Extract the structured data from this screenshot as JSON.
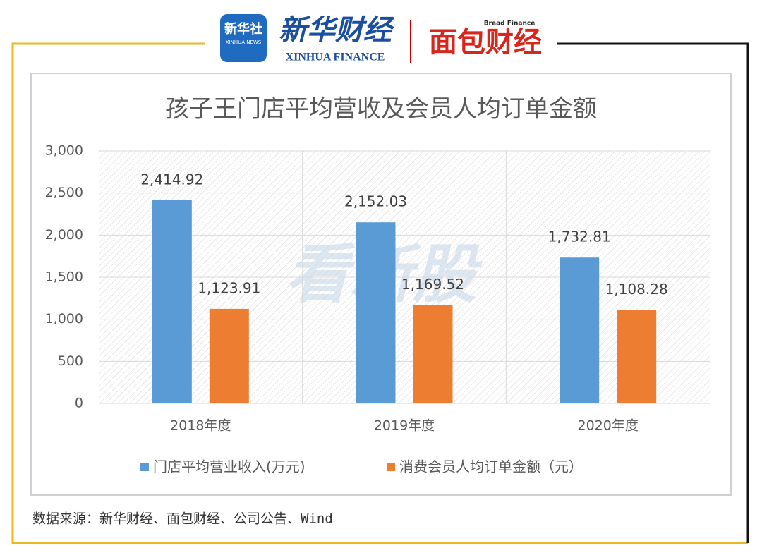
{
  "header": {
    "xinhua_news": "新华社",
    "xinhua_news_en": "XINHUA NEWS",
    "xinhua_finance": "新华财经",
    "xinhua_finance_en": "XINHUA FINANCE",
    "bread_finance": "面包财经",
    "bread_finance_en": "Bread Finance"
  },
  "chart_data": {
    "type": "bar",
    "title": "孩子王门店平均营收及会员人均订单金额",
    "watermark": "看新股",
    "categories": [
      "2018年度",
      "2019年度",
      "2020年度"
    ],
    "series": [
      {
        "name": "门店平均营业收入(万元)",
        "color": "#5b9bd5",
        "values": [
          2414.92,
          2152.03,
          1732.81
        ],
        "value_labels": [
          "2,414.92",
          "2,152.03",
          "1,732.81"
        ]
      },
      {
        "name": "消费会员人均订单金额（元）",
        "color": "#ed7d31",
        "values": [
          1123.91,
          1169.52,
          1108.28
        ],
        "value_labels": [
          "1,123.91",
          "1,169.52",
          "1,108.28"
        ]
      }
    ],
    "ylim": [
      0,
      3000
    ],
    "yticks": [
      0,
      500,
      {
        "value": 1000,
        "label": "1,000"
      },
      {
        "value": 1500,
        "label": "1,500"
      },
      {
        "value": 2000,
        "label": "2,000"
      },
      {
        "value": 2500,
        "label": "2,500"
      },
      {
        "value": 3000,
        "label": "3,000"
      }
    ],
    "grid": true,
    "legend": "bottom"
  },
  "footer": {
    "source": "数据来源：新华财经、面包财经、公司公告、Wind"
  }
}
